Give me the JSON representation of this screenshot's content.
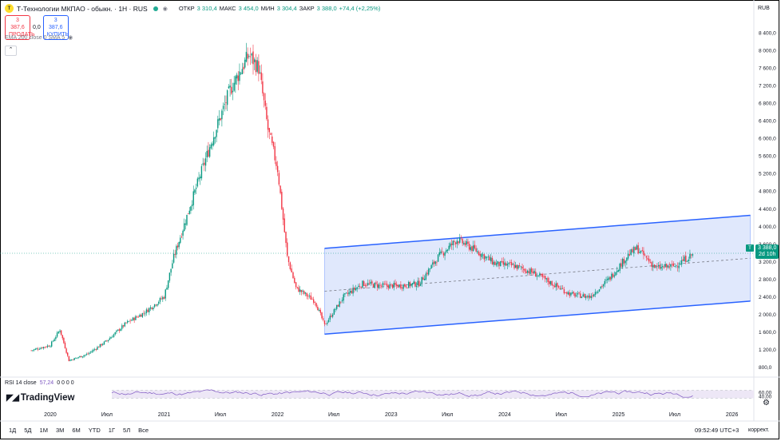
{
  "header": {
    "logo_letter": "T",
    "title": "Т-Технологии МКПАО - обыкн. · 1H · RUS",
    "ohlc": [
      {
        "k": "ОТКР",
        "v": "3 310,4"
      },
      {
        "k": "МАКС",
        "v": "3 454,0"
      },
      {
        "k": "МИН",
        "v": "3 304,4"
      },
      {
        "k": "ЗАКР",
        "v": "3 388,0"
      }
    ],
    "change": "+74,4 (+2,25%)"
  },
  "trade": {
    "sell_price": "3 387,6",
    "sell_label": "ПРОДАТЬ",
    "spread": "0,0",
    "buy_price": "3 387,6",
    "buy_label": "КУПИТЬ"
  },
  "indicators": {
    "ema_label": "EMA 200 close 0 SMA 5",
    "collapse_icon": "chevron-up-icon",
    "rsi_label": "RSI 14 close",
    "rsi_value": "57,24",
    "rsi_extra": "0 0 0 0"
  },
  "currency": "RUB",
  "last_price": {
    "symbol": "T",
    "price": "3 388,0",
    "countdown": "2d 10h"
  },
  "y_axis": [
    "8 400,0",
    "8 000,0",
    "7 600,0",
    "7 200,0",
    "6 800,0",
    "6 400,0",
    "6 000,0",
    "5 600,0",
    "5 200,0",
    "4 800,0",
    "4 400,0",
    "4 000,0",
    "3 600,0",
    "3 200,0",
    "2 800,0",
    "2 400,0",
    "2 000,0",
    "1 600,0",
    "1 200,0",
    "800,0"
  ],
  "rsi_axis": [
    "60,00",
    "40,00"
  ],
  "x_axis": [
    "2020",
    "Июл",
    "2021",
    "Июл",
    "2022",
    "Июл",
    "2023",
    "Июл",
    "2024",
    "Июл",
    "2025",
    "Июл",
    "2026"
  ],
  "bottom": {
    "timeframes": [
      "1Д",
      "5Д",
      "1М",
      "3М",
      "6М",
      "YTD",
      "1Г",
      "5Л",
      "Все"
    ],
    "clock": "09:52:49 UTC+3",
    "adjust_label": "коррект."
  },
  "brand": "TradingView",
  "colors": {
    "up": "#089981",
    "down": "#f23645",
    "channel_line": "#2962ff",
    "channel_fill": "#d6e0fb",
    "rsi_line": "#7e57c2",
    "rsi_band": "#ede7f6"
  },
  "chart_data": {
    "type": "candlestick",
    "symbol": "Т-Технологии МКПАО",
    "interval": "1H",
    "ylim": [
      700,
      8600
    ],
    "x_range": [
      "2019-09",
      "2026-06"
    ],
    "series_close_approx": [
      {
        "date": "2019-11",
        "price": 1180
      },
      {
        "date": "2020-01",
        "price": 1300
      },
      {
        "date": "2020-02",
        "price": 1650
      },
      {
        "date": "2020-03",
        "price": 950
      },
      {
        "date": "2020-05",
        "price": 1100
      },
      {
        "date": "2020-07",
        "price": 1400
      },
      {
        "date": "2020-09",
        "price": 1800
      },
      {
        "date": "2020-11",
        "price": 2050
      },
      {
        "date": "2021-01",
        "price": 2400
      },
      {
        "date": "2021-02",
        "price": 3300
      },
      {
        "date": "2021-04",
        "price": 4600
      },
      {
        "date": "2021-06",
        "price": 5900
      },
      {
        "date": "2021-08",
        "price": 7100
      },
      {
        "date": "2021-10",
        "price": 7900
      },
      {
        "date": "2021-11",
        "price": 7600
      },
      {
        "date": "2021-12",
        "price": 6200
      },
      {
        "date": "2022-01",
        "price": 5300
      },
      {
        "date": "2022-02",
        "price": 3300
      },
      {
        "date": "2022-03",
        "price": 2600
      },
      {
        "date": "2022-05",
        "price": 2300
      },
      {
        "date": "2022-06",
        "price": 1750
      },
      {
        "date": "2022-08",
        "price": 2400
      },
      {
        "date": "2022-10",
        "price": 2700
      },
      {
        "date": "2022-12",
        "price": 2650
      },
      {
        "date": "2023-02",
        "price": 2650
      },
      {
        "date": "2023-04",
        "price": 2700
      },
      {
        "date": "2023-06",
        "price": 3300
      },
      {
        "date": "2023-08",
        "price": 3700
      },
      {
        "date": "2023-10",
        "price": 3450
      },
      {
        "date": "2023-12",
        "price": 3150
      },
      {
        "date": "2024-02",
        "price": 3100
      },
      {
        "date": "2024-04",
        "price": 2950
      },
      {
        "date": "2024-06",
        "price": 2700
      },
      {
        "date": "2024-08",
        "price": 2450
      },
      {
        "date": "2024-10",
        "price": 2400
      },
      {
        "date": "2024-12",
        "price": 2800
      },
      {
        "date": "2025-02",
        "price": 3350
      },
      {
        "date": "2025-03",
        "price": 3500
      },
      {
        "date": "2025-05",
        "price": 3050
      },
      {
        "date": "2025-07",
        "price": 3100
      },
      {
        "date": "2025-09",
        "price": 3388
      }
    ],
    "channel": {
      "upper": [
        {
          "date": "2022-06",
          "price": 3500
        },
        {
          "date": "2026-03",
          "price": 4250
        }
      ],
      "lower": [
        {
          "date": "2022-06",
          "price": 1550
        },
        {
          "date": "2026-03",
          "price": 2300
        }
      ],
      "middle_dashed": true
    },
    "last_close": 3388.0,
    "rsi": {
      "period": 14,
      "value": 57.24,
      "levels": [
        70,
        30
      ],
      "range": [
        0,
        100
      ]
    }
  }
}
